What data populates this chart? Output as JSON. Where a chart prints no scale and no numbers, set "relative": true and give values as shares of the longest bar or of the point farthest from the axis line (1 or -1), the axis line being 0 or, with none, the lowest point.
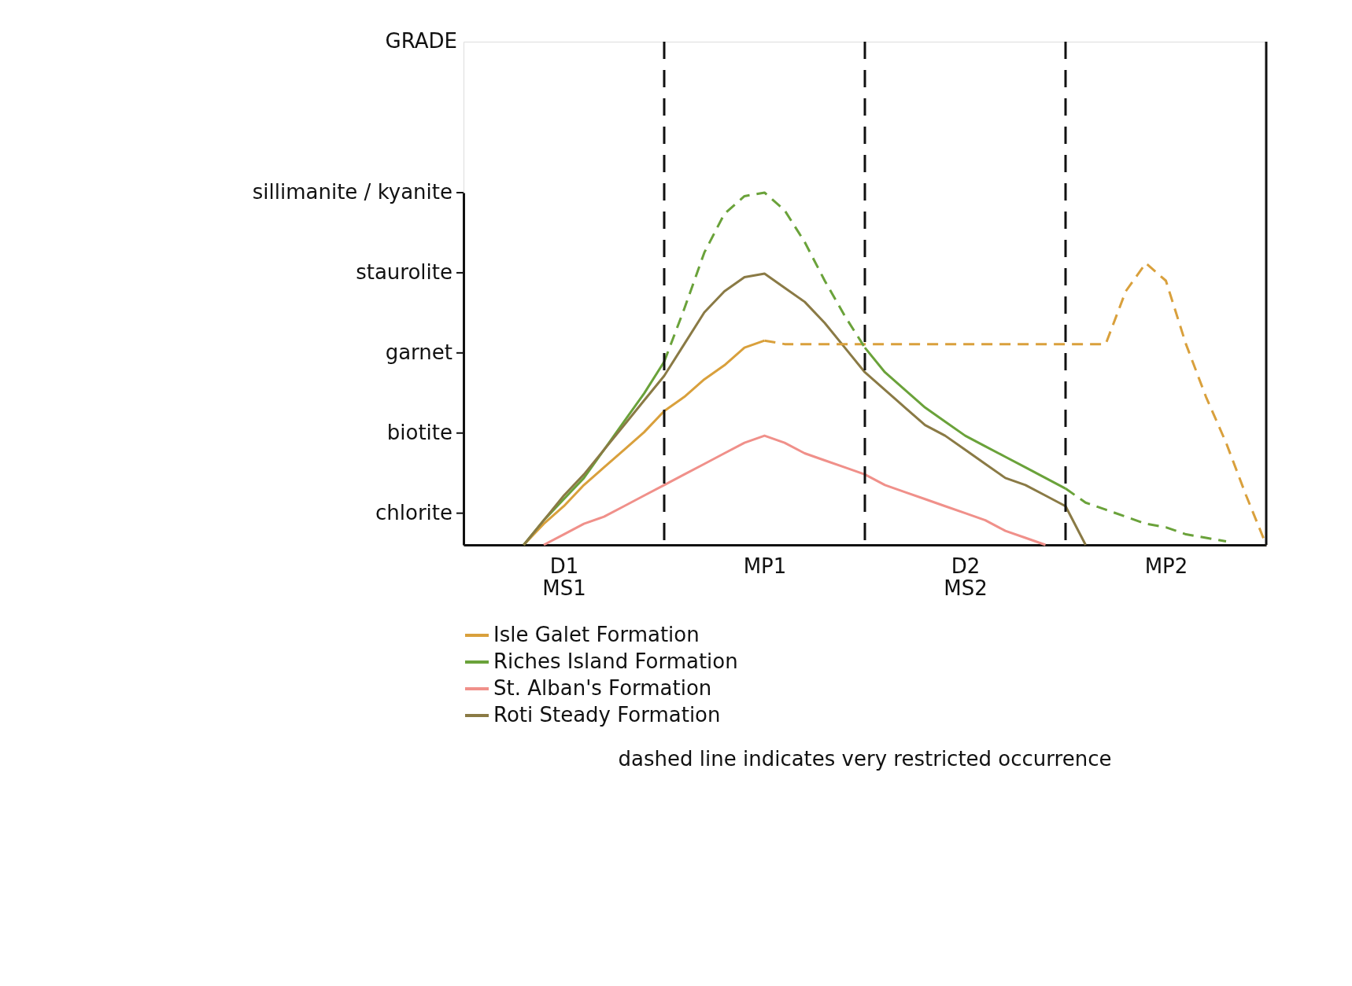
{
  "chart_data": {
    "type": "line",
    "relative": true,
    "grid": "x",
    "legend": "bottom",
    "categories": [
      null,
      null,
      null,
      null,
      null,
      "D1\nMS1",
      null,
      null,
      null,
      null,
      null,
      null,
      null,
      null,
      null,
      "MP1",
      null,
      null,
      null,
      null,
      null,
      null,
      null,
      null,
      null,
      "D2\nMS2",
      null,
      null,
      null,
      null,
      null,
      null,
      null,
      null,
      null,
      "MP2",
      null,
      null,
      null,
      null,
      null
    ],
    "series": [
      {
        "name": "Isle Galet Formation",
        "color": "#d9a03c",
        "line_style": "solid",
        "values": [
          null,
          null,
          null,
          0,
          0.06,
          0.11,
          0.17,
          0.22,
          0.27,
          0.32,
          0.38,
          0.42,
          0.47,
          0.51,
          0.56,
          0.58,
          null,
          null,
          null,
          null,
          null,
          null,
          null,
          null,
          null,
          null,
          null,
          null,
          null,
          null,
          null,
          null,
          null,
          null,
          null,
          null,
          null,
          null,
          null,
          null,
          null
        ]
      },
      {
        "name": "Riches Island Formation",
        "color": "#6aa23a",
        "line_style": "solid",
        "values": [
          null,
          null,
          null,
          0,
          0.07,
          0.13,
          0.19,
          0.27,
          0.35,
          0.43,
          0.52,
          null,
          null,
          null,
          null,
          null,
          null,
          null,
          null,
          null,
          null,
          null,
          null,
          null,
          null,
          null,
          null,
          null,
          null,
          null,
          null,
          null,
          null,
          null,
          null,
          null,
          null,
          null,
          null,
          null,
          null
        ]
      },
      {
        "name": "St. Alban's Formation",
        "color": "#f0908a",
        "line_style": "solid",
        "values": [
          null,
          null,
          null,
          null,
          0,
          0.03,
          0.06,
          0.08,
          0.11,
          0.14,
          0.17,
          0.2,
          0.23,
          0.26,
          0.29,
          0.31,
          0.29,
          0.26,
          0.24,
          0.22,
          0.2,
          0.17,
          0.15,
          0.13,
          0.11,
          0.09,
          0.07,
          0.04,
          0.02,
          0,
          null,
          null,
          null,
          null,
          null,
          null,
          null,
          null,
          null,
          null,
          null
        ]
      },
      {
        "name": "Roti Steady Formation",
        "color": "#8a7a45",
        "line_style": "solid",
        "values": [
          null,
          null,
          null,
          0,
          0.07,
          0.14,
          0.2,
          0.27,
          0.34,
          0.41,
          0.48,
          0.57,
          0.66,
          0.72,
          0.76,
          0.77,
          0.73,
          0.69,
          0.63,
          0.56,
          0.49,
          0.44,
          0.39,
          0.34,
          0.31,
          0.27,
          0.23,
          0.19,
          0.17,
          0.14,
          0.11,
          0,
          null,
          null,
          null,
          null,
          null,
          null,
          null,
          null,
          null
        ]
      },
      {
        "color": "#d9a03c",
        "line_style": "dashed",
        "values": [
          null,
          null,
          null,
          null,
          null,
          null,
          null,
          null,
          null,
          null,
          null,
          null,
          null,
          null,
          null,
          0.58,
          0.57,
          0.57,
          0.57,
          0.57,
          0.57,
          0.57,
          0.57,
          0.57,
          0.57,
          0.57,
          0.57,
          0.57,
          0.57,
          0.57,
          0.57,
          0.57,
          0.57,
          0.72,
          0.8,
          0.75,
          0.57,
          0.42,
          0.29,
          0.14,
          0
        ]
      },
      {
        "color": "#6aa23a",
        "line_style": "dashed",
        "values": [
          null,
          null,
          null,
          null,
          null,
          null,
          null,
          null,
          null,
          null,
          0.52,
          0.67,
          0.83,
          0.94,
          0.99,
          1.0,
          0.95,
          0.86,
          0.75,
          0.65,
          0.56,
          null,
          null,
          null,
          null,
          null,
          null,
          null,
          null,
          null,
          null,
          null,
          null,
          null,
          null,
          null,
          null,
          null,
          null,
          null,
          null
        ]
      },
      {
        "color": "#6aa23a",
        "line_style": "solid",
        "values": [
          null,
          null,
          null,
          null,
          null,
          null,
          null,
          null,
          null,
          null,
          null,
          null,
          null,
          null,
          null,
          null,
          null,
          null,
          null,
          null,
          0.56,
          0.49,
          0.44,
          0.39,
          0.35,
          0.31,
          0.28,
          0.25,
          0.22,
          0.19,
          0.16,
          null,
          null,
          null,
          null,
          null,
          null,
          null,
          null,
          null,
          null
        ]
      },
      {
        "color": "#6aa23a",
        "line_style": "dashed",
        "values": [
          null,
          null,
          null,
          null,
          null,
          null,
          null,
          null,
          null,
          null,
          null,
          null,
          null,
          null,
          null,
          null,
          null,
          null,
          null,
          null,
          null,
          null,
          null,
          null,
          null,
          null,
          null,
          null,
          null,
          null,
          0.16,
          0.12,
          0.1,
          0.08,
          0.06,
          0.05,
          0.03,
          0.02,
          0.01,
          null,
          null
        ]
      }
    ],
    "annotations": [
      "GRADE",
      "chlorite",
      "biotite",
      "garnet",
      "staurolite",
      "sillimanite / kyanite",
      "dashed line indicates very restricted occurrence"
    ]
  }
}
